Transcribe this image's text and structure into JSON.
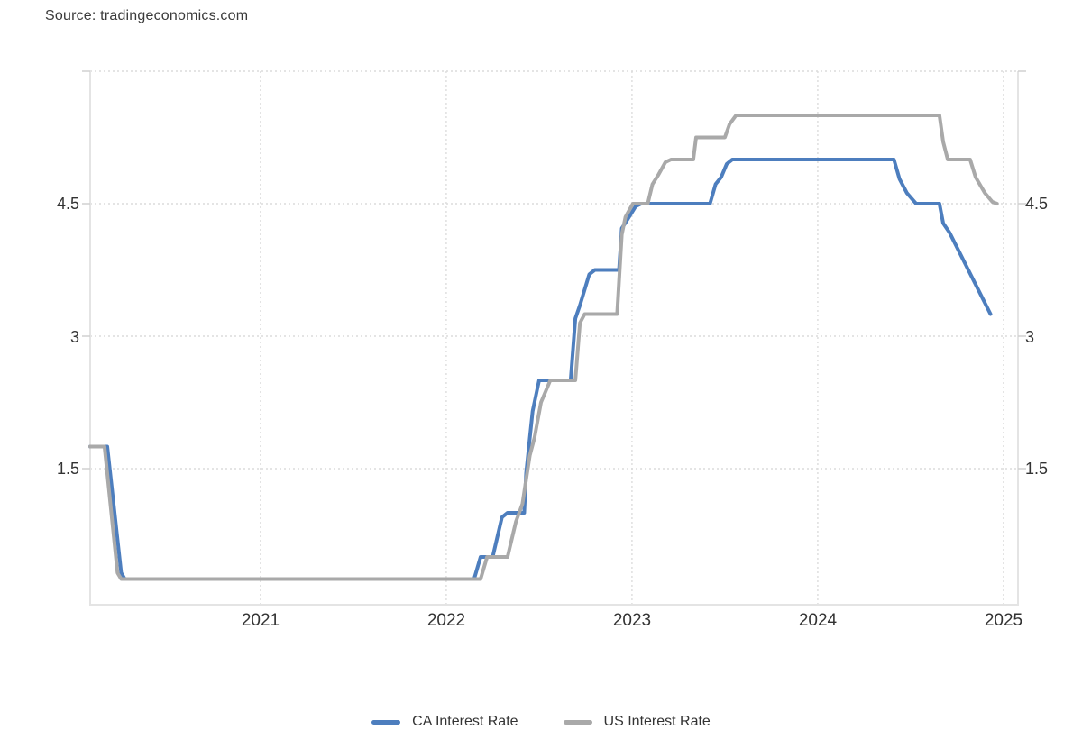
{
  "source": {
    "text": "Source: tradingeconomics.com"
  },
  "chart_data": {
    "type": "line",
    "units": "percent",
    "title": "",
    "xlabel": "",
    "ylabel": "",
    "grid": "dotted",
    "legend_position": "bottom-center",
    "xaxis": {
      "range": [
        2020.083,
        2025.078
      ],
      "ticks": [
        2021,
        2022,
        2023,
        2024,
        2025
      ],
      "tick_labels": [
        "2021",
        "2022",
        "2023",
        "2024",
        "2025"
      ]
    },
    "yaxis": {
      "range": [
        0,
        6
      ],
      "ticks": [
        1.5,
        3,
        4.5
      ],
      "tick_labels": [
        "1.5",
        "3",
        "4.5"
      ],
      "gridlines": [
        1.5,
        3,
        4.5,
        6
      ],
      "labels_on_both_sides": true
    },
    "series": [
      {
        "name": "CA Interest Rate",
        "color": "#4d7ebe",
        "points": [
          [
            2020.083,
            1.75
          ],
          [
            2020.175,
            1.75
          ],
          [
            2020.25,
            0.32
          ],
          [
            2020.27,
            0.25
          ],
          [
            2022.15,
            0.25
          ],
          [
            2022.185,
            0.5
          ],
          [
            2022.25,
            0.5
          ],
          [
            2022.3,
            0.95
          ],
          [
            2022.33,
            1.0
          ],
          [
            2022.42,
            1.0
          ],
          [
            2022.43,
            1.45
          ],
          [
            2022.465,
            2.15
          ],
          [
            2022.5,
            2.5
          ],
          [
            2022.67,
            2.5
          ],
          [
            2022.695,
            3.2
          ],
          [
            2022.72,
            3.35
          ],
          [
            2022.77,
            3.7
          ],
          [
            2022.8,
            3.75
          ],
          [
            2022.93,
            3.75
          ],
          [
            2022.945,
            4.22
          ],
          [
            2022.97,
            4.3
          ],
          [
            2023.02,
            4.47
          ],
          [
            2023.05,
            4.5
          ],
          [
            2023.42,
            4.5
          ],
          [
            2023.45,
            4.72
          ],
          [
            2023.48,
            4.8
          ],
          [
            2023.51,
            4.95
          ],
          [
            2023.54,
            5.0
          ],
          [
            2024.41,
            5.0
          ],
          [
            2024.44,
            4.78
          ],
          [
            2024.48,
            4.62
          ],
          [
            2024.53,
            4.5
          ],
          [
            2024.655,
            4.5
          ],
          [
            2024.675,
            4.28
          ],
          [
            2024.71,
            4.17
          ],
          [
            2024.93,
            3.25
          ]
        ]
      },
      {
        "name": "US Interest Rate",
        "color": "#a9a9a9",
        "points": [
          [
            2020.083,
            1.75
          ],
          [
            2020.16,
            1.75
          ],
          [
            2020.23,
            0.32
          ],
          [
            2020.25,
            0.25
          ],
          [
            2022.185,
            0.25
          ],
          [
            2022.22,
            0.5
          ],
          [
            2022.33,
            0.5
          ],
          [
            2022.375,
            0.9
          ],
          [
            2022.41,
            1.1
          ],
          [
            2022.45,
            1.65
          ],
          [
            2022.475,
            1.85
          ],
          [
            2022.51,
            2.25
          ],
          [
            2022.56,
            2.5
          ],
          [
            2022.695,
            2.5
          ],
          [
            2022.72,
            3.15
          ],
          [
            2022.745,
            3.25
          ],
          [
            2022.92,
            3.25
          ],
          [
            2022.945,
            4.15
          ],
          [
            2022.965,
            4.35
          ],
          [
            2023.005,
            4.5
          ],
          [
            2023.085,
            4.5
          ],
          [
            2023.11,
            4.72
          ],
          [
            2023.14,
            4.82
          ],
          [
            2023.18,
            4.97
          ],
          [
            2023.21,
            5.0
          ],
          [
            2023.33,
            5.0
          ],
          [
            2023.345,
            5.25
          ],
          [
            2023.5,
            5.25
          ],
          [
            2023.525,
            5.4
          ],
          [
            2023.56,
            5.5
          ],
          [
            2024.655,
            5.5
          ],
          [
            2024.675,
            5.2
          ],
          [
            2024.7,
            5.0
          ],
          [
            2024.82,
            5.0
          ],
          [
            2024.85,
            4.8
          ],
          [
            2024.9,
            4.62
          ],
          [
            2024.94,
            4.52
          ],
          [
            2024.965,
            4.5
          ]
        ]
      }
    ],
    "colors": {
      "axis_line": "#e4e4e4",
      "gridline": "#dcdcdc",
      "tick": "#d0d0d0",
      "text": "#333333"
    }
  },
  "legend": {
    "items": [
      {
        "label": "CA Interest Rate"
      },
      {
        "label": "US Interest Rate"
      }
    ]
  }
}
